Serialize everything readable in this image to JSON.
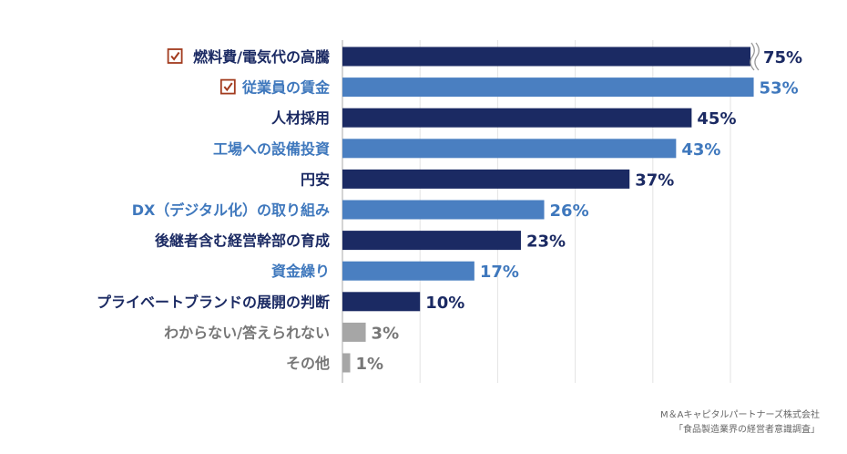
{
  "chart_data": {
    "type": "bar",
    "orientation": "horizontal",
    "categories": [
      "燃料費/電気代の高騰",
      "従業員の賃金",
      "人材採用",
      "工場への設備投資",
      "円安",
      "DX（デジタル化）の取り組み",
      "後継者含む経営幹部の育成",
      "資金繰り",
      "プライベートブランドの展開の判断",
      "わからない/答えられない",
      "その他"
    ],
    "values": [
      75,
      53,
      45,
      43,
      37,
      26,
      23,
      17,
      10,
      3,
      1
    ],
    "value_labels": [
      "75%",
      "53%",
      "45%",
      "43%",
      "37%",
      "26%",
      "23%",
      "17%",
      "10%",
      "3%",
      "1%"
    ],
    "checked": [
      true,
      true,
      false,
      false,
      false,
      false,
      false,
      false,
      false,
      false,
      false
    ],
    "axis_break_on": [
      0
    ],
    "grid": true,
    "colors": {
      "dark": "#1b2a63",
      "light": "#4a7fc1",
      "gray": "#a6a6a6",
      "check": "#a23b1e"
    },
    "color_pattern": [
      "dark",
      "light",
      "dark",
      "light",
      "dark",
      "light",
      "dark",
      "light",
      "dark",
      "gray",
      "gray"
    ]
  },
  "source": {
    "line1": "M＆Aキャピタルパートナーズ株式会社",
    "line2": "「食品製造業界の経営者意識調査」"
  }
}
